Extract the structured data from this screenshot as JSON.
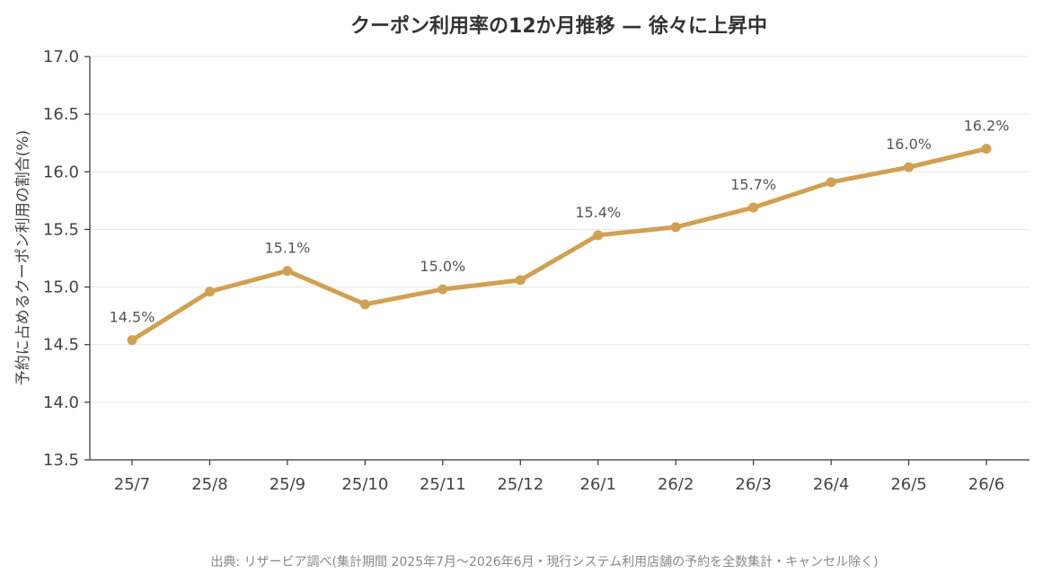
{
  "chart_data": {
    "type": "line",
    "title": "クーポン利用率の12か月推移 — 徐々に上昇中",
    "xlabel": "",
    "ylabel": "予約に占めるクーポン利用の割合(%)",
    "ylim": [
      13.5,
      17.0
    ],
    "yticks": [
      "13.5",
      "14.0",
      "14.5",
      "15.0",
      "15.5",
      "16.0",
      "16.5",
      "17.0"
    ],
    "categories": [
      "25/7",
      "25/8",
      "25/9",
      "25/10",
      "25/11",
      "25/12",
      "26/1",
      "26/2",
      "26/3",
      "26/4",
      "26/5",
      "26/6"
    ],
    "values": [
      14.54,
      14.96,
      15.14,
      14.85,
      14.98,
      15.06,
      15.45,
      15.52,
      15.69,
      15.91,
      16.04,
      16.2
    ],
    "data_labels": [
      {
        "index": 0,
        "text": "14.5%"
      },
      {
        "index": 2,
        "text": "15.1%"
      },
      {
        "index": 4,
        "text": "15.0%"
      },
      {
        "index": 6,
        "text": "15.4%"
      },
      {
        "index": 8,
        "text": "15.7%"
      },
      {
        "index": 10,
        "text": "16.0%"
      },
      {
        "index": 11,
        "text": "16.2%"
      }
    ],
    "line_color": "#D1A052",
    "grid": "horizontal",
    "source": "出典: リザービア調べ(集計期間 2025年7月〜2026年6月・現行システム利用店舗の予約を全数集計・キャンセル除く)"
  }
}
